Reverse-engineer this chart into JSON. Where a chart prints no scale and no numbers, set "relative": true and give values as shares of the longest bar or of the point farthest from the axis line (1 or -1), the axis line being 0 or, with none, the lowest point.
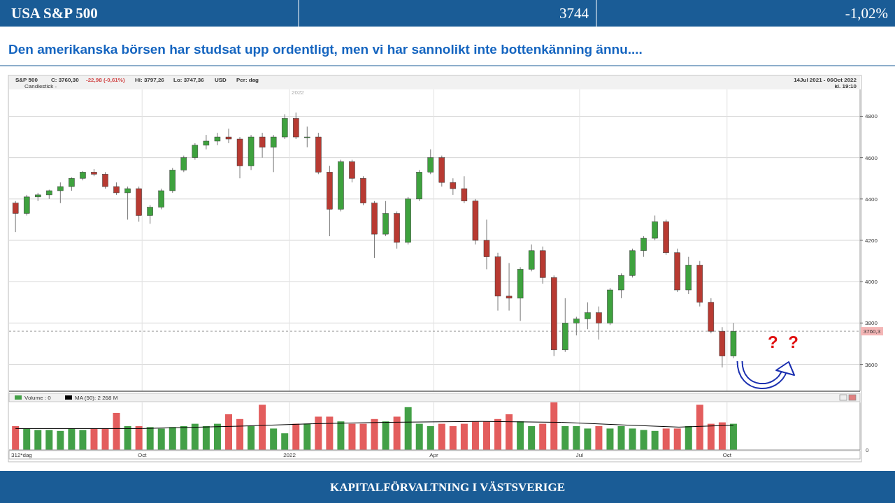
{
  "chart_data": [
    {
      "type": "candlestick",
      "title": "USA S&P 500",
      "subtitle": "Den amerikanska börsen har studsat upp ordentligt, men vi har sannolikt inte bottenkänning ännu....",
      "annotations": [
        "3744",
        "-1,02%",
        "S&P 500",
        "C: 3760,30",
        "-22,98 (-0,61%)",
        "Hi: 3797,26",
        "Lo: 3747,36",
        "USD",
        "Per: dag",
        "Candlestick -",
        "14Jul 2021 - 06Oct 2022",
        "kl. 19:10",
        "2022",
        "? ?",
        "KAPITALFÖRVALTNING I VÄSTSVERIGE"
      ],
      "x": [
        "2021-07-14",
        "2021-07-21",
        "2021-07-28",
        "2021-08-04",
        "2021-08-11",
        "2021-08-18",
        "2021-08-25",
        "2021-09-01",
        "2021-09-08",
        "2021-09-15",
        "2021-09-22",
        "2021-09-29",
        "2021-10-06",
        "2021-10-13",
        "2021-10-20",
        "2021-10-27",
        "2021-11-03",
        "2021-11-10",
        "2021-11-17",
        "2021-11-24",
        "2021-12-01",
        "2021-12-08",
        "2021-12-15",
        "2021-12-22",
        "2021-12-29",
        "2022-01-05",
        "2022-01-12",
        "2022-01-19",
        "2022-01-26",
        "2022-02-02",
        "2022-02-09",
        "2022-02-16",
        "2022-02-23",
        "2022-03-02",
        "2022-03-09",
        "2022-03-16",
        "2022-03-23",
        "2022-03-30",
        "2022-04-06",
        "2022-04-13",
        "2022-04-20",
        "2022-04-27",
        "2022-05-04",
        "2022-05-11",
        "2022-05-18",
        "2022-05-25",
        "2022-06-01",
        "2022-06-08",
        "2022-06-15",
        "2022-06-22",
        "2022-06-29",
        "2022-07-06",
        "2022-07-13",
        "2022-07-20",
        "2022-07-27",
        "2022-08-03",
        "2022-08-10",
        "2022-08-17",
        "2022-08-24",
        "2022-08-31",
        "2022-09-07",
        "2022-09-14",
        "2022-09-21",
        "2022-09-28",
        "2022-10-05"
      ],
      "ohlc": [
        [
          4380,
          4390,
          4240,
          4330
        ],
        [
          4330,
          4420,
          4320,
          4410
        ],
        [
          4410,
          4430,
          4390,
          4420
        ],
        [
          4420,
          4445,
          4400,
          4440
        ],
        [
          4440,
          4480,
          4380,
          4460
        ],
        [
          4460,
          4505,
          4440,
          4500
        ],
        [
          4500,
          4535,
          4490,
          4530
        ],
        [
          4530,
          4545,
          4510,
          4520
        ],
        [
          4520,
          4530,
          4450,
          4460
        ],
        [
          4460,
          4480,
          4420,
          4430
        ],
        [
          4430,
          4460,
          4300,
          4450
        ],
        [
          4450,
          4460,
          4290,
          4320
        ],
        [
          4320,
          4370,
          4280,
          4360
        ],
        [
          4360,
          4450,
          4350,
          4440
        ],
        [
          4440,
          4550,
          4430,
          4540
        ],
        [
          4540,
          4610,
          4530,
          4600
        ],
        [
          4600,
          4670,
          4590,
          4660
        ],
        [
          4660,
          4710,
          4640,
          4680
        ],
        [
          4680,
          4720,
          4660,
          4700
        ],
        [
          4700,
          4740,
          4670,
          4690
        ],
        [
          4690,
          4700,
          4500,
          4560
        ],
        [
          4560,
          4710,
          4540,
          4700
        ],
        [
          4700,
          4720,
          4600,
          4650
        ],
        [
          4650,
          4710,
          4530,
          4700
        ],
        [
          4700,
          4810,
          4690,
          4790
        ],
        [
          4790,
          4818,
          4690,
          4700
        ],
        [
          4700,
          4750,
          4650,
          4700
        ],
        [
          4700,
          4720,
          4520,
          4530
        ],
        [
          4530,
          4560,
          4220,
          4350
        ],
        [
          4350,
          4590,
          4340,
          4580
        ],
        [
          4580,
          4590,
          4480,
          4500
        ],
        [
          4500,
          4510,
          4370,
          4380
        ],
        [
          4380,
          4390,
          4115,
          4230
        ],
        [
          4230,
          4390,
          4220,
          4330
        ],
        [
          4330,
          4340,
          4160,
          4190
        ],
        [
          4190,
          4410,
          4180,
          4400
        ],
        [
          4400,
          4540,
          4390,
          4530
        ],
        [
          4530,
          4640,
          4520,
          4600
        ],
        [
          4600,
          4610,
          4460,
          4480
        ],
        [
          4480,
          4500,
          4420,
          4450
        ],
        [
          4450,
          4510,
          4380,
          4390
        ],
        [
          4390,
          4400,
          4180,
          4200
        ],
        [
          4200,
          4300,
          4060,
          4120
        ],
        [
          4120,
          4140,
          3860,
          3930
        ],
        [
          3930,
          4090,
          3860,
          3920
        ],
        [
          3920,
          4070,
          3810,
          4060
        ],
        [
          4060,
          4180,
          4050,
          4150
        ],
        [
          4150,
          4170,
          3990,
          4020
        ],
        [
          4020,
          4030,
          3640,
          3670
        ],
        [
          3670,
          3920,
          3660,
          3800
        ],
        [
          3800,
          3830,
          3740,
          3820
        ],
        [
          3820,
          3900,
          3770,
          3850
        ],
        [
          3850,
          3880,
          3720,
          3800
        ],
        [
          3800,
          3970,
          3790,
          3960
        ],
        [
          3960,
          4040,
          3920,
          4030
        ],
        [
          4030,
          4160,
          4020,
          4150
        ],
        [
          4150,
          4220,
          4120,
          4210
        ],
        [
          4210,
          4320,
          4200,
          4290
        ],
        [
          4290,
          4300,
          4130,
          4140
        ],
        [
          4140,
          4160,
          3950,
          3960
        ],
        [
          3960,
          4120,
          3940,
          4080
        ],
        [
          4080,
          4100,
          3880,
          3900
        ],
        [
          3900,
          3920,
          3750,
          3760
        ],
        [
          3760,
          3780,
          3585,
          3640
        ],
        [
          3640,
          3800,
          3630,
          3760
        ]
      ],
      "xlim": [
        "2021-07-10",
        "2022-12-23"
      ],
      "xticks": [
        {
          "value": "2021-10-01",
          "label": null
        },
        {
          "value": "2022-01-01",
          "label": null
        },
        {
          "value": "2022-04-01",
          "label": null
        },
        {
          "value": "2022-07-01",
          "label": null
        },
        {
          "value": "2022-10-01",
          "label": null
        }
      ],
      "ylim": [
        3470,
        4930
      ],
      "yticks": [
        3600,
        3800,
        4000,
        4200,
        4400,
        4600,
        4800
      ],
      "grid": true,
      "tick_labels": "y",
      "ref_lines": [
        {
          "axis": "y",
          "value": 3760.3,
          "label": "3760,3",
          "line_style": "dashed",
          "color": "#999999"
        }
      ]
    },
    {
      "type": "bar",
      "relative": true,
      "legend": "top left",
      "grid": "x",
      "tick_labels": "x",
      "annotations": [
        "312*dag",
        "0"
      ],
      "x": [
        "2021-07-14",
        "2021-07-21",
        "2021-07-28",
        "2021-08-04",
        "2021-08-11",
        "2021-08-18",
        "2021-08-25",
        "2021-09-01",
        "2021-09-08",
        "2021-09-15",
        "2021-09-22",
        "2021-09-29",
        "2021-10-06",
        "2021-10-13",
        "2021-10-20",
        "2021-10-27",
        "2021-11-03",
        "2021-11-10",
        "2021-11-17",
        "2021-11-24",
        "2021-12-01",
        "2021-12-08",
        "2021-12-15",
        "2021-12-22",
        "2021-12-29",
        "2022-01-05",
        "2022-01-12",
        "2022-01-19",
        "2022-01-26",
        "2022-02-02",
        "2022-02-09",
        "2022-02-16",
        "2022-02-23",
        "2022-03-02",
        "2022-03-09",
        "2022-03-16",
        "2022-03-23",
        "2022-03-30",
        "2022-04-06",
        "2022-04-13",
        "2022-04-20",
        "2022-04-27",
        "2022-05-04",
        "2022-05-11",
        "2022-05-18",
        "2022-05-25",
        "2022-06-01",
        "2022-06-08",
        "2022-06-15",
        "2022-06-22",
        "2022-06-29",
        "2022-07-06",
        "2022-07-13",
        "2022-07-20",
        "2022-07-27",
        "2022-08-03",
        "2022-08-10",
        "2022-08-17",
        "2022-08-24",
        "2022-08-31",
        "2022-09-07",
        "2022-09-14",
        "2022-09-21",
        "2022-09-28",
        "2022-10-05"
      ],
      "xlim": [
        "2021-07-10",
        "2022-12-23"
      ],
      "xticks": [
        {
          "value": "2021-10-01",
          "label": "Oct"
        },
        {
          "value": "2022-01-01",
          "label": "2022"
        },
        {
          "value": "2022-04-01",
          "label": "Apr"
        },
        {
          "value": "2022-07-01",
          "label": "Jul"
        },
        {
          "value": "2022-10-01",
          "label": "Oct"
        }
      ],
      "series": [
        {
          "name": "Volume : 0",
          "color": "#43a047",
          "values": [
            0.5,
            0.45,
            0.42,
            0.42,
            0.4,
            0.45,
            0.42,
            0.45,
            0.45,
            0.78,
            0.5,
            0.5,
            0.48,
            0.45,
            0.48,
            0.5,
            0.55,
            0.5,
            0.55,
            0.75,
            0.65,
            0.5,
            0.95,
            0.45,
            0.35,
            0.55,
            0.55,
            0.7,
            0.7,
            0.6,
            0.55,
            0.55,
            0.65,
            0.6,
            0.7,
            0.9,
            0.55,
            0.5,
            0.55,
            0.5,
            0.55,
            0.6,
            0.6,
            0.65,
            0.75,
            0.6,
            0.5,
            0.55,
            1,
            0.5,
            0.5,
            0.45,
            0.5,
            0.45,
            0.5,
            0.45,
            0.42,
            0.4,
            0.45,
            0.45,
            0.5,
            0.95,
            0.55,
            0.58,
            0.55
          ],
          "colors": [
            "#e35d5d",
            "#43a047",
            "#43a047",
            "#43a047",
            "#43a047",
            "#43a047",
            "#43a047",
            "#e35d5d",
            "#e35d5d",
            "#e35d5d",
            "#43a047",
            "#e35d5d",
            "#43a047",
            "#43a047",
            "#43a047",
            "#43a047",
            "#43a047",
            "#43a047",
            "#43a047",
            "#e35d5d",
            "#e35d5d",
            "#43a047",
            "#e35d5d",
            "#43a047",
            "#43a047",
            "#e35d5d",
            "#43a047",
            "#e35d5d",
            "#e35d5d",
            "#43a047",
            "#e35d5d",
            "#e35d5d",
            "#e35d5d",
            "#43a047",
            "#e35d5d",
            "#43a047",
            "#43a047",
            "#43a047",
            "#e35d5d",
            "#e35d5d",
            "#e35d5d",
            "#e35d5d",
            "#e35d5d",
            "#e35d5d",
            "#e35d5d",
            "#43a047",
            "#43a047",
            "#e35d5d",
            "#e35d5d",
            "#43a047",
            "#43a047",
            "#43a047",
            "#e35d5d",
            "#43a047",
            "#43a047",
            "#43a047",
            "#43a047",
            "#43a047",
            "#e35d5d",
            "#e35d5d",
            "#43a047",
            "#e35d5d",
            "#e35d5d",
            "#e35d5d",
            "#43a047"
          ]
        },
        {
          "name": "MA (50): 2 268 M",
          "type": "line",
          "color": "#000000",
          "x": [
            "2021-07-14",
            "2021-10-01",
            "2021-12-01",
            "2022-01-15",
            "2022-03-01",
            "2022-05-01",
            "2022-06-20",
            "2022-08-01",
            "2022-09-01",
            "2022-10-05"
          ],
          "values": [
            0.45,
            0.45,
            0.5,
            0.55,
            0.58,
            0.6,
            0.58,
            0.52,
            0.48,
            0.52
          ]
        }
      ]
    }
  ]
}
